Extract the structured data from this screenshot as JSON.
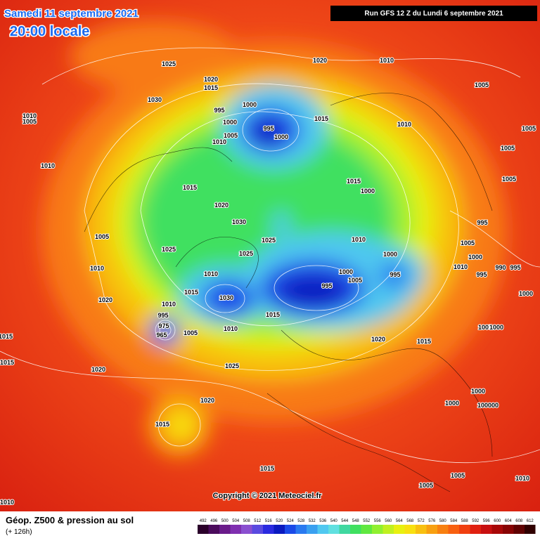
{
  "header": {
    "date": "Samedi 11 septembre 2021",
    "time": "20:00 locale",
    "run": "Run GFS 12 Z du Lundi 6 septembre 2021"
  },
  "isobar_labels": [
    "1025",
    "1020",
    "1010",
    "1020",
    "1015",
    "1030",
    "1005",
    "995",
    "1000",
    "1000",
    "995",
    "1000",
    "1005",
    "1010",
    "1015",
    "1010",
    "1005",
    "1010",
    "1005",
    "1010",
    "1005",
    "1005",
    "1015",
    "1015",
    "1000",
    "1020",
    "1030",
    "995",
    "1005",
    "1025",
    "1025",
    "1025",
    "1010",
    "1005",
    "1000",
    "1000",
    "1010",
    "1010",
    "1000",
    "1005",
    "995",
    "995",
    "990",
    "995",
    "1010",
    "1015",
    "1030",
    "995",
    "1000",
    "1020",
    "1010",
    "995",
    "975",
    "965",
    "1005",
    "1010",
    "1015",
    "1005",
    "1000",
    "1015",
    "1020",
    "1015",
    "1015",
    "1025",
    "1020",
    "1020",
    "1000",
    "1000",
    "100000",
    "1015",
    "1015",
    "1005",
    "1010",
    "1005",
    "1010"
  ],
  "copyright": "Copyright © 2021 Meteociel.fr",
  "footer": {
    "title": "Géop. Z500 & pression au sol",
    "lead": "(+ 126h)"
  },
  "scale": {
    "labels": [
      492,
      496,
      500,
      504,
      508,
      512,
      516,
      520,
      524,
      528,
      532,
      536,
      540,
      544,
      548,
      552,
      556,
      560,
      564,
      568,
      572,
      576,
      580,
      584,
      588,
      592,
      596,
      600,
      604,
      608,
      612
    ],
    "colors": [
      "#2a002a",
      "#4b0b5c",
      "#6a1b8a",
      "#7f2fb0",
      "#8a4fd0",
      "#5a4ae0",
      "#2a2ae0",
      "#0a1ac0",
      "#1a4ae8",
      "#2a7af0",
      "#3aa0f0",
      "#50c8f0",
      "#60e0e0",
      "#40d8a0",
      "#40e060",
      "#60e840",
      "#90f030",
      "#c0f020",
      "#e8f010",
      "#f8e010",
      "#f8c010",
      "#f8a010",
      "#f88010",
      "#f86010",
      "#f04010",
      "#e02010",
      "#c81010",
      "#a80808",
      "#880404",
      "#600202",
      "#300000"
    ]
  }
}
